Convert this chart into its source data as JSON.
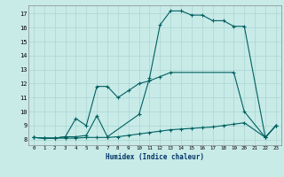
{
  "xlabel": "Humidex (Indice chaleur)",
  "bg_color": "#c8ebe8",
  "grid_color": "#b0d8d5",
  "line_color": "#006060",
  "xlim": [
    -0.5,
    23.5
  ],
  "ylim": [
    7.6,
    17.6
  ],
  "xticks": [
    0,
    1,
    2,
    3,
    4,
    5,
    6,
    7,
    8,
    9,
    10,
    11,
    12,
    13,
    14,
    15,
    16,
    17,
    18,
    19,
    20,
    21,
    22,
    23
  ],
  "yticks": [
    8,
    9,
    10,
    11,
    12,
    13,
    14,
    15,
    16,
    17
  ],
  "line1_x": [
    0,
    1,
    2,
    3,
    4,
    5,
    6,
    7,
    8,
    9,
    10,
    11,
    12,
    13,
    14,
    15,
    16,
    17,
    18,
    19,
    20,
    22,
    23
  ],
  "line1_y": [
    8.15,
    8.1,
    8.1,
    8.1,
    8.1,
    8.15,
    8.15,
    8.15,
    8.2,
    8.3,
    8.4,
    8.5,
    8.6,
    8.7,
    8.75,
    8.8,
    8.85,
    8.9,
    9.0,
    9.1,
    9.2,
    8.15,
    9.0
  ],
  "line2_x": [
    0,
    1,
    2,
    3,
    4,
    5,
    6,
    7,
    8,
    9,
    10,
    11,
    12,
    13,
    19,
    20,
    22,
    23
  ],
  "line2_y": [
    8.15,
    8.1,
    8.1,
    8.2,
    9.5,
    9.0,
    11.8,
    11.8,
    11.0,
    11.5,
    12.0,
    12.2,
    12.5,
    12.8,
    12.8,
    10.0,
    8.15,
    9.0
  ],
  "line3_x": [
    0,
    1,
    2,
    3,
    4,
    5,
    6,
    7,
    10,
    11,
    12,
    13,
    14,
    15,
    16,
    17,
    18,
    19,
    20,
    22,
    23
  ],
  "line3_y": [
    8.15,
    8.1,
    8.1,
    8.2,
    8.2,
    8.3,
    9.7,
    8.2,
    9.8,
    12.4,
    16.2,
    17.2,
    17.2,
    16.9,
    16.9,
    16.5,
    16.5,
    16.1,
    16.1,
    8.15,
    9.0
  ]
}
